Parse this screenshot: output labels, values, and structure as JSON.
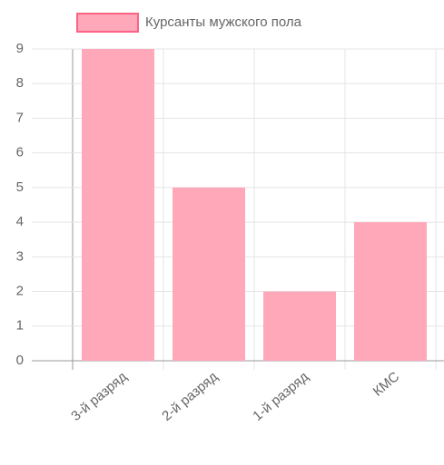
{
  "chart_data": {
    "type": "bar",
    "categories": [
      "3-й разряд",
      "2-й разряд",
      "1-й разряд",
      "КМС"
    ],
    "series": [
      {
        "name": "Курсанты мужского пола",
        "color": "#ffa8ba",
        "values": [
          9,
          5,
          2,
          4
        ]
      }
    ],
    "ylim": [
      0,
      9
    ],
    "yticks": [
      0,
      1,
      2,
      3,
      4,
      5,
      6,
      7,
      8,
      9
    ],
    "grid": true
  }
}
